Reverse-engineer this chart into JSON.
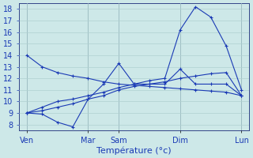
{
  "background_color": "#cde8e8",
  "grid_color": "#b0d0d0",
  "line_color": "#1a3ab5",
  "xlabel": "Température (°c)",
  "ylim": [
    7.5,
    18.5
  ],
  "yticks": [
    8,
    9,
    10,
    11,
    12,
    13,
    14,
    15,
    16,
    17,
    18
  ],
  "day_labels": [
    "Ven",
    "Mar",
    "Sam",
    "Dim",
    "Lun"
  ],
  "day_positions": [
    0,
    8,
    12,
    20,
    28
  ],
  "vline_positions": [
    0,
    8,
    12,
    20,
    28
  ],
  "xlim": [
    -1,
    29
  ],
  "series": [
    {
      "x": [
        0,
        2,
        4,
        6,
        8,
        10,
        12,
        14,
        16,
        18,
        20,
        22,
        24,
        26,
        28
      ],
      "y": [
        14.0,
        13.0,
        12.5,
        12.2,
        12.0,
        11.7,
        11.5,
        11.4,
        11.3,
        11.2,
        11.1,
        11.0,
        10.9,
        10.8,
        10.5
      ]
    },
    {
      "x": [
        0,
        2,
        4,
        6,
        8,
        10,
        12,
        14,
        16,
        18,
        20,
        22,
        24,
        26,
        28
      ],
      "y": [
        9.0,
        8.9,
        8.2,
        7.8,
        10.2,
        11.5,
        13.3,
        11.5,
        11.5,
        11.5,
        12.8,
        11.5,
        11.5,
        11.5,
        10.5
      ]
    },
    {
      "x": [
        0,
        2,
        4,
        6,
        8,
        10,
        12,
        14,
        16,
        18,
        20,
        22,
        24,
        26,
        28
      ],
      "y": [
        9.0,
        9.2,
        9.5,
        9.8,
        10.2,
        10.5,
        11.0,
        11.3,
        11.5,
        11.7,
        12.0,
        12.2,
        12.4,
        12.5,
        10.5
      ]
    },
    {
      "x": [
        0,
        2,
        4,
        6,
        8,
        10,
        12,
        14,
        16,
        18,
        20,
        22,
        24,
        26,
        28
      ],
      "y": [
        9.0,
        9.5,
        10.0,
        10.2,
        10.5,
        10.8,
        11.2,
        11.5,
        11.8,
        12.0,
        16.2,
        18.2,
        17.3,
        14.8,
        11.0
      ]
    }
  ],
  "tick_fontsize": 7,
  "label_fontsize": 8
}
